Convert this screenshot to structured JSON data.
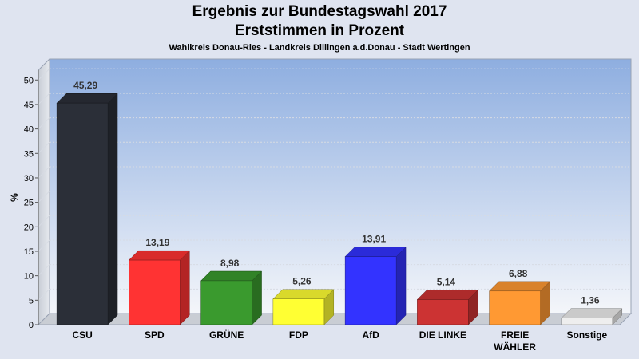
{
  "title": "Ergebnis zur Bundestagswahl 2017",
  "subtitle": "Erststimmen in Prozent",
  "subsubtitle": "Wahlkreis Donau-Ries - Landkreis Dillingen a.d.Donau - Stadt Wertingen",
  "chart_data": {
    "type": "bar",
    "ylabel": "%",
    "ylim": [
      0,
      52
    ],
    "yticks": [
      0,
      5,
      10,
      15,
      20,
      25,
      30,
      35,
      40,
      45,
      50
    ],
    "grid": true,
    "categories": [
      "CSU",
      "SPD",
      "GRÜNE",
      "FDP",
      "AfD",
      "DIE LINKE",
      "FREIE WÄHLER",
      "Sonstige"
    ],
    "values": [
      45.29,
      13.19,
      8.98,
      5.26,
      13.91,
      5.14,
      6.88,
      1.36
    ],
    "value_labels": [
      "45,29",
      "13,19",
      "8,98",
      "5,26",
      "13,91",
      "5,14",
      "6,88",
      "1,36"
    ],
    "colors": [
      "#2b2f38",
      "#ff3333",
      "#3a9a2e",
      "#ffff33",
      "#3333ff",
      "#cc3333",
      "#ff9933",
      "#eeeeee"
    ]
  }
}
